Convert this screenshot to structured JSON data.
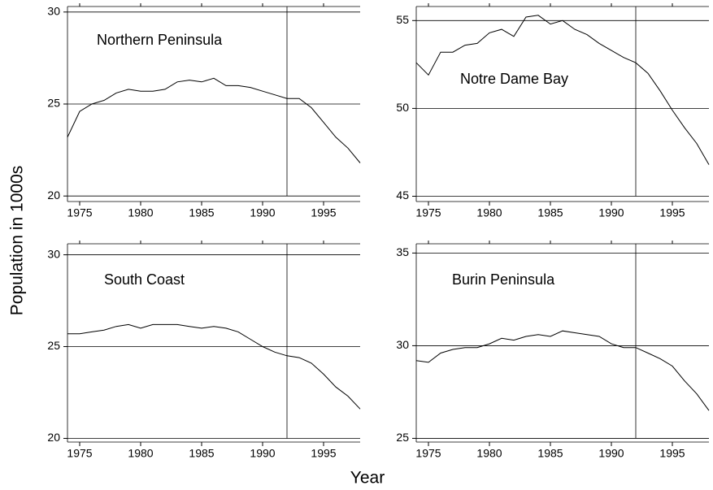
{
  "ylabel": "Population in 1000s",
  "xlabel": "Year",
  "chart_data": [
    {
      "type": "line",
      "title": "Northern Peninsula",
      "x": [
        1974,
        1975,
        1976,
        1977,
        1978,
        1979,
        1980,
        1981,
        1982,
        1983,
        1984,
        1985,
        1986,
        1987,
        1988,
        1989,
        1990,
        1991,
        1992,
        1993,
        1994,
        1995,
        1996,
        1997,
        1998
      ],
      "values": [
        23.2,
        24.6,
        25.0,
        25.2,
        25.6,
        25.8,
        25.7,
        25.7,
        25.8,
        26.2,
        26.3,
        26.2,
        26.4,
        26.0,
        26.0,
        25.9,
        25.7,
        25.5,
        25.3,
        25.3,
        24.8,
        24.0,
        23.2,
        22.6,
        21.8
      ],
      "xlim": [
        1974,
        1998
      ],
      "ylim": [
        19.7,
        30.3
      ],
      "xticks": [
        1975,
        1980,
        1985,
        1990,
        1995
      ],
      "yticks": [
        20,
        25,
        30
      ],
      "grid": true,
      "vline": 1992,
      "color": "#000000"
    },
    {
      "type": "line",
      "title": "Notre Dame Bay",
      "x": [
        1974,
        1975,
        1976,
        1977,
        1978,
        1979,
        1980,
        1981,
        1982,
        1983,
        1984,
        1985,
        1986,
        1987,
        1988,
        1989,
        1990,
        1991,
        1992,
        1993,
        1994,
        1995,
        1996,
        1997,
        1998
      ],
      "values": [
        52.6,
        51.9,
        53.2,
        53.2,
        53.6,
        53.7,
        54.3,
        54.5,
        54.1,
        55.2,
        55.3,
        54.8,
        55.0,
        54.5,
        54.2,
        53.7,
        53.3,
        52.9,
        52.6,
        52.0,
        51.0,
        49.9,
        48.9,
        48.0,
        46.8
      ],
      "xlim": [
        1974,
        1998
      ],
      "ylim": [
        44.7,
        55.8
      ],
      "xticks": [
        1975,
        1980,
        1985,
        1990,
        1995
      ],
      "yticks": [
        45,
        50,
        55
      ],
      "grid": true,
      "vline": 1992,
      "color": "#000000"
    },
    {
      "type": "line",
      "title": "South Coast",
      "x": [
        1974,
        1975,
        1976,
        1977,
        1978,
        1979,
        1980,
        1981,
        1982,
        1983,
        1984,
        1985,
        1986,
        1987,
        1988,
        1989,
        1990,
        1991,
        1992,
        1993,
        1994,
        1995,
        1996,
        1997,
        1998
      ],
      "values": [
        25.7,
        25.7,
        25.8,
        25.9,
        26.1,
        26.2,
        26.0,
        26.2,
        26.2,
        26.2,
        26.1,
        26.0,
        26.1,
        26.0,
        25.8,
        25.4,
        25.0,
        24.7,
        24.5,
        24.4,
        24.1,
        23.5,
        22.8,
        22.3,
        21.6
      ],
      "xlim": [
        1974,
        1998
      ],
      "ylim": [
        19.8,
        30.6
      ],
      "xticks": [
        1975,
        1980,
        1985,
        1990,
        1995
      ],
      "yticks": [
        20,
        25,
        30
      ],
      "grid": true,
      "vline": 1992,
      "color": "#000000"
    },
    {
      "type": "line",
      "title": "Burin Peninsula",
      "x": [
        1974,
        1975,
        1976,
        1977,
        1978,
        1979,
        1980,
        1981,
        1982,
        1983,
        1984,
        1985,
        1986,
        1987,
        1988,
        1989,
        1990,
        1991,
        1992,
        1993,
        1994,
        1995,
        1996,
        1997,
        1998
      ],
      "values": [
        29.2,
        29.1,
        29.6,
        29.8,
        29.9,
        29.9,
        30.1,
        30.4,
        30.3,
        30.5,
        30.6,
        30.5,
        30.8,
        30.7,
        30.6,
        30.5,
        30.1,
        29.9,
        29.9,
        29.6,
        29.3,
        28.9,
        28.1,
        27.4,
        26.5
      ],
      "xlim": [
        1974,
        1998
      ],
      "ylim": [
        24.8,
        35.5
      ],
      "xticks": [
        1975,
        1980,
        1985,
        1990,
        1995
      ],
      "yticks": [
        25,
        30,
        35
      ],
      "grid": true,
      "vline": 1992,
      "color": "#000000"
    }
  ]
}
